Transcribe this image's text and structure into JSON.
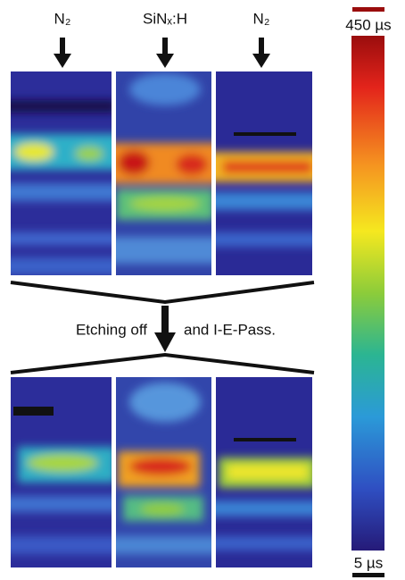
{
  "top_labels": [
    "N₂",
    "SiNₓ:H",
    "N₂"
  ],
  "middle": {
    "left": "Etching off",
    "right": "and I-E-Pass."
  },
  "colorbar": {
    "max_label": "450 µs",
    "min_label": "5 µs"
  }
}
